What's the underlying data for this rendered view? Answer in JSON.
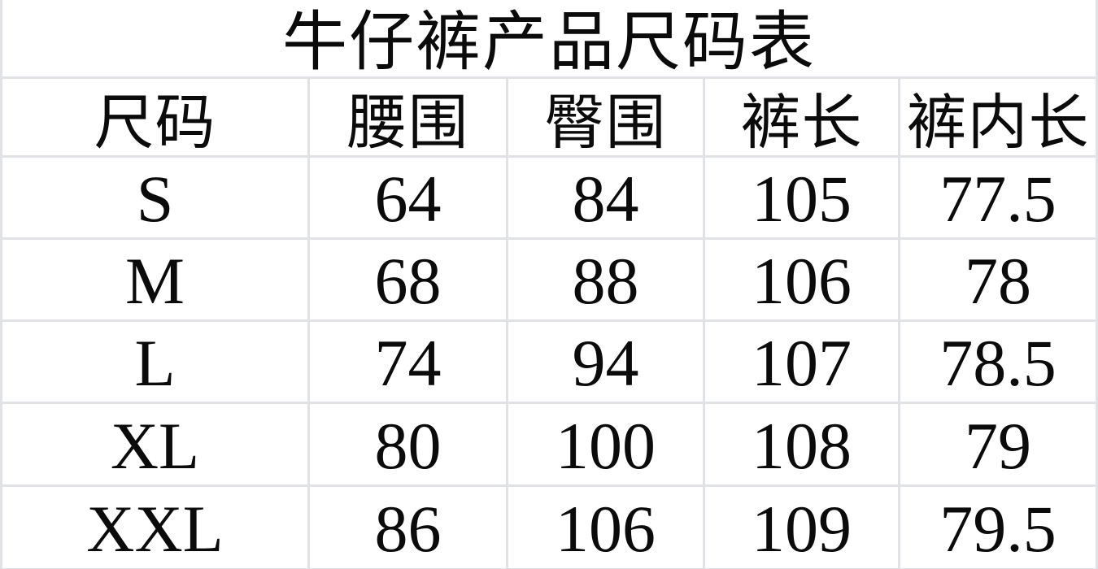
{
  "chart_data": {
    "type": "table",
    "title": "牛仔裤产品尺码表",
    "columns": [
      "尺码",
      "腰围",
      "臀围",
      "裤长",
      "裤内长"
    ],
    "rows": [
      [
        "S",
        "64",
        "84",
        "105",
        "77.5"
      ],
      [
        "M",
        "68",
        "88",
        "106",
        "78"
      ],
      [
        "L",
        "74",
        "94",
        "107",
        "78.5"
      ],
      [
        "XL",
        "80",
        "100",
        "108",
        "79"
      ],
      [
        "XXL",
        "86",
        "106",
        "109",
        "79.5"
      ]
    ],
    "layout": {
      "grid": "on",
      "title_row_merged": true,
      "text_align": "center"
    }
  },
  "colors": {
    "background": "#ffffff",
    "grid_line": "#e0e2e6",
    "text": "#0b0b0b"
  }
}
